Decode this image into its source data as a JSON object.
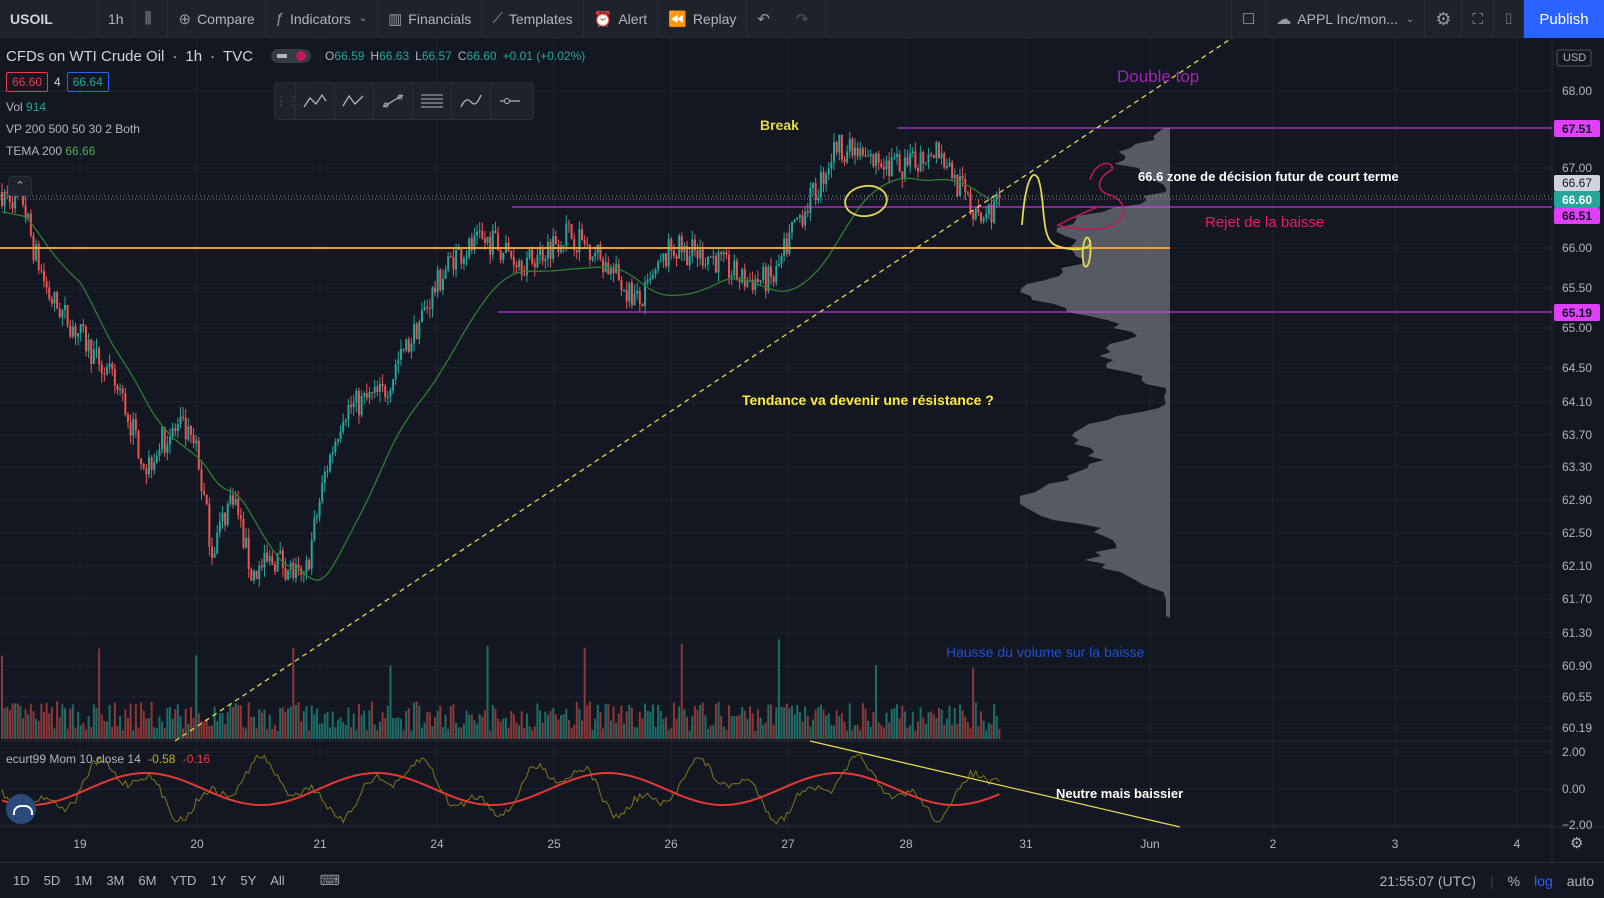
{
  "toolbar": {
    "symbol": "USOIL",
    "interval": "1h",
    "compare": "Compare",
    "indicators": "Indicators",
    "financials": "Financials",
    "templates": "Templates",
    "alert": "Alert",
    "replay": "Replay",
    "watchlist": "APPL Inc/mon...",
    "publish": "Publish"
  },
  "legend": {
    "title": "CFDs on WTI Crude Oil",
    "interval": "1h",
    "source": "TVC",
    "open": "66.59",
    "high": "66.63",
    "low": "66.57",
    "close": "66.60",
    "change": "+0.01 (+0.02%)",
    "bid": "66.60",
    "spread": "4",
    "ask": "66.64",
    "vol_label": "Vol",
    "vol_value": "914",
    "vp_label": "VP 200 500 50 30 2 Both",
    "tema_label": "TEMA 200",
    "tema_value": "66.66",
    "osc_label": "ecurt99 Mom 10 close 14",
    "osc_v1": "-0.58",
    "osc_v2": "-0.16"
  },
  "annotations": {
    "double_top": "Double top",
    "break": "Break",
    "zone": "66.6 zone de décision futur de court terme",
    "rejet": "Rejet de la baisse",
    "tendance": "Tendance va devenir une résistance ?",
    "hausse_volume": "Hausse du volume sur la baisse",
    "neutre": "Neutre mais baissier"
  },
  "price_axis": {
    "currency": "USD",
    "ticks": [
      "68.00",
      "67.00",
      "66.00",
      "65.50",
      "65.00",
      "64.50",
      "64.10",
      "63.70",
      "63.30",
      "62.90",
      "62.50",
      "62.10",
      "61.70",
      "61.30",
      "60.90",
      "60.55",
      "60.19"
    ],
    "labels": {
      "resistance_top": "67.51",
      "level_6667": "66.67",
      "last_price": "66.60",
      "level_6651": "66.51",
      "support": "65.19"
    },
    "osc_ticks": [
      "2.00",
      "0.00",
      "−2.00"
    ]
  },
  "time_axis": {
    "ticks": [
      "19",
      "20",
      "21",
      "24",
      "25",
      "26",
      "27",
      "28",
      "31",
      "Jun",
      "2",
      "3",
      "4"
    ]
  },
  "bottombar": {
    "ranges": [
      "1D",
      "5D",
      "1M",
      "3M",
      "6M",
      "YTD",
      "1Y",
      "5Y",
      "All"
    ],
    "clock": "21:55:07 (UTC)",
    "percent": "%",
    "log": "log",
    "auto": "auto"
  },
  "colors": {
    "up": "#26a69a",
    "down": "#ef5350",
    "orange_line": "#f0a030",
    "magenta": "#e040fb",
    "tema": "#2e7d32",
    "trend": "#e5d84a"
  },
  "chart_data": {
    "type": "candlestick",
    "series": [
      {
        "name": "CFDs on WTI Crude Oil",
        "last": 66.6
      },
      {
        "name": "TEMA 200",
        "last": 66.66
      }
    ],
    "horizontal_levels": [
      67.51,
      66.51,
      66.0,
      65.19
    ],
    "y_axis_ticks": [
      68.0,
      67.0,
      66.0,
      65.5,
      65.0,
      64.5,
      64.1,
      63.7,
      63.3,
      62.9,
      62.5,
      62.1,
      61.7,
      61.3,
      60.9,
      60.55,
      60.19
    ]
  }
}
